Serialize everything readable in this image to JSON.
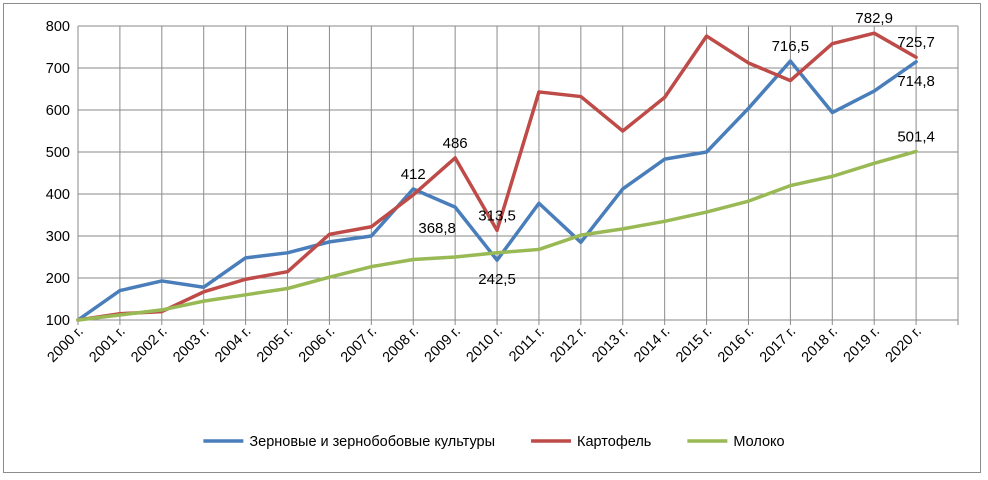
{
  "chart_data": {
    "type": "line",
    "categories": [
      "2000 г.",
      "2001 г.",
      "2002 г.",
      "2003 г.",
      "2004 г.",
      "2005 г.",
      "2006 г.",
      "2007 г.",
      "2008 г.",
      "2009 г.",
      "2010 г.",
      "2011 г.",
      "2012 г.",
      "2013 г.",
      "2014 г.",
      "2015 г.",
      "2016 г.",
      "2017 г.",
      "2018 г.",
      "2019 г.",
      "2020 г."
    ],
    "series": [
      {
        "name": "Зерновые и зернобобовые культуры",
        "color": "#4a7ebb",
        "values": [
          100,
          170,
          193,
          178,
          248,
          260,
          286,
          300,
          412,
          368.8,
          242.5,
          378,
          285,
          412,
          483,
          500,
          604,
          716.5,
          594,
          645,
          714.8
        ]
      },
      {
        "name": "Картофель",
        "color": "#be4b48",
        "values": [
          100,
          115,
          120,
          167,
          197,
          215,
          304,
          322,
          398,
          486,
          313.5,
          643,
          632,
          550,
          630,
          776,
          712,
          670,
          758,
          782.9,
          725.7
        ]
      },
      {
        "name": "Молоко",
        "color": "#98b954",
        "values": [
          100,
          112,
          124,
          145,
          160,
          175,
          202,
          227,
          244,
          250,
          260,
          268,
          302,
          317,
          335,
          357,
          383,
          420,
          442,
          473,
          501.4
        ]
      }
    ],
    "data_labels": [
      {
        "series": 0,
        "index": 8,
        "text": "412",
        "position": "above"
      },
      {
        "series": 0,
        "index": 9,
        "text": "368,8",
        "position": "below-left"
      },
      {
        "series": 0,
        "index": 10,
        "text": "242,5",
        "position": "below"
      },
      {
        "series": 0,
        "index": 17,
        "text": "716,5",
        "position": "above"
      },
      {
        "series": 0,
        "index": 20,
        "text": "714,8",
        "position": "below"
      },
      {
        "series": 1,
        "index": 9,
        "text": "486",
        "position": "above"
      },
      {
        "series": 1,
        "index": 10,
        "text": "313,5",
        "position": "above"
      },
      {
        "series": 1,
        "index": 19,
        "text": "782,9",
        "position": "above"
      },
      {
        "series": 1,
        "index": 20,
        "text": "725,7",
        "position": "above"
      },
      {
        "series": 2,
        "index": 20,
        "text": "501,4",
        "position": "above"
      }
    ],
    "y_ticks": [
      100,
      200,
      300,
      400,
      500,
      600,
      700,
      800
    ],
    "ylim": [
      100,
      800
    ],
    "grid": true,
    "legend": "bottom"
  }
}
